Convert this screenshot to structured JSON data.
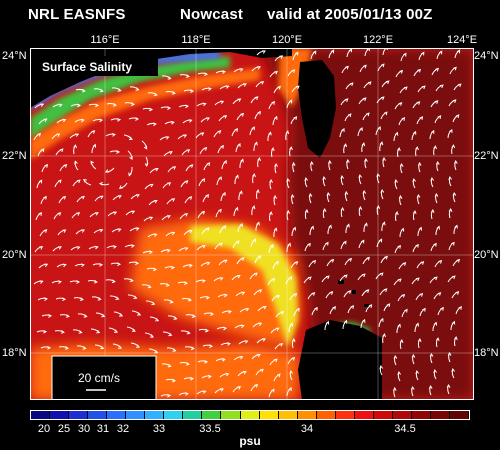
{
  "header": {
    "left": "NRL EASNFS",
    "middle": "Nowcast",
    "right": "valid at 2005/01/13 00Z"
  },
  "map": {
    "panel_label": "Surface Salinity",
    "lon_labels": [
      "116°E",
      "118°E",
      "120°E",
      "122°E",
      "124°E"
    ],
    "lat_labels": [
      "24°N",
      "22°N",
      "20°N",
      "18°N"
    ],
    "scale_label": "20 cm/s",
    "colors": {
      "ocean_main": "#c81414",
      "ocean_east": "#7a0a0a",
      "coastal_orange": "#ff6a10",
      "coastal_yellow": "#f0e020",
      "coastal_green": "#40c040",
      "coastal_blue": "#3080ff",
      "land": "#000000",
      "vectors": "#ffffff"
    }
  },
  "colorbar": {
    "labels": [
      "20",
      "25",
      "30",
      "31",
      "32",
      "33",
      "33.5",
      "34",
      "34.5"
    ],
    "unit": "psu",
    "colors": [
      "#0a0a80",
      "#1010b0",
      "#1a30d0",
      "#2050e8",
      "#2a70ff",
      "#3090ff",
      "#30b0ff",
      "#30d0f0",
      "#20d0a0",
      "#40d040",
      "#90e020",
      "#e0f010",
      "#ffe000",
      "#ffc000",
      "#ff9000",
      "#ff6000",
      "#ff3010",
      "#f01010",
      "#d00808",
      "#b00808",
      "#900606",
      "#780505",
      "#600404"
    ]
  }
}
